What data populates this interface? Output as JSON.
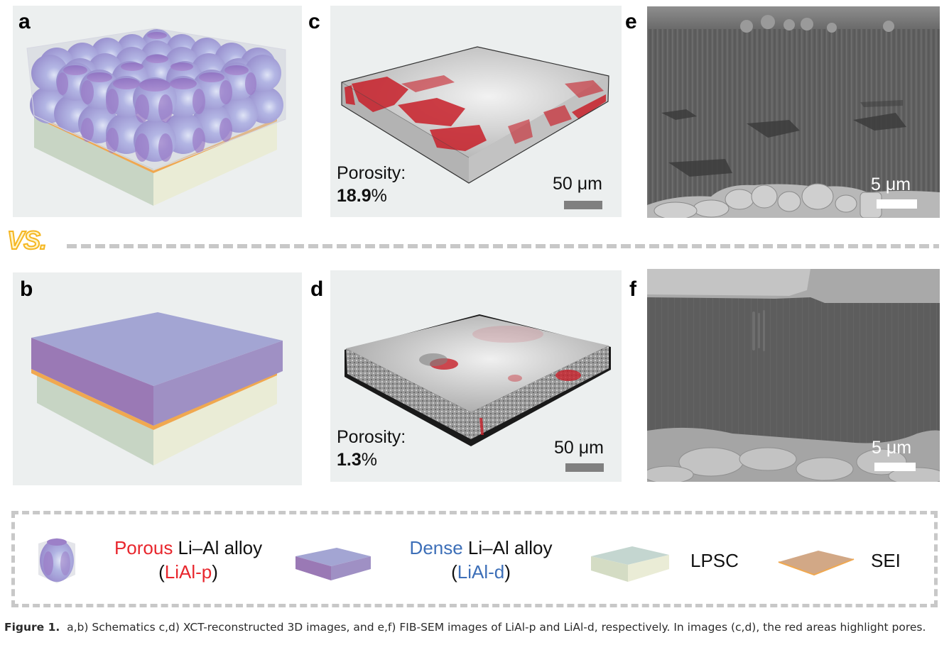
{
  "panels": {
    "a": {
      "label": "a"
    },
    "b": {
      "label": "b"
    },
    "c": {
      "label": "c",
      "porosity_label": "Porosity:",
      "porosity_value": "18.9",
      "porosity_unit": "%",
      "scale": "50 μm"
    },
    "d": {
      "label": "d",
      "porosity_label": "Porosity:",
      "porosity_value": "1.3",
      "porosity_unit": "%",
      "scale": "50 μm"
    },
    "e": {
      "label": "e",
      "scale": "5 μm"
    },
    "f": {
      "label": "f",
      "scale": "5 μm"
    }
  },
  "separator": {
    "text": "VS."
  },
  "legend": {
    "items": [
      {
        "name": "porous",
        "highlight": "Porous",
        "rest": " Li–Al alloy",
        "abbr_open": "(",
        "abbr": "LiAl-p",
        "abbr_close": ")"
      },
      {
        "name": "dense",
        "highlight": "Dense",
        "rest": " Li–Al alloy",
        "abbr_open": "(",
        "abbr": "LiAl-d",
        "abbr_close": ")"
      },
      {
        "name": "lpsc",
        "label": "LPSC"
      },
      {
        "name": "sei",
        "label": "SEI"
      }
    ]
  },
  "caption": {
    "lead": "Figure 1.",
    "text": "  a,b) Schematics c,d) XCT-reconstructed 3D images, and e,f) FIB-SEM images of LiAl-p and LiAl-d, respectively. In images (c,d), the red areas highlight pores."
  },
  "colors": {
    "porous_red": "#e8262d",
    "dense_blue": "#3d6fb8",
    "alloy_purple": "#a3a3d3",
    "lpsc_green": "#c7d5c4",
    "sei_orange": "#f0a850",
    "vs_yellow": "#f5b621"
  }
}
